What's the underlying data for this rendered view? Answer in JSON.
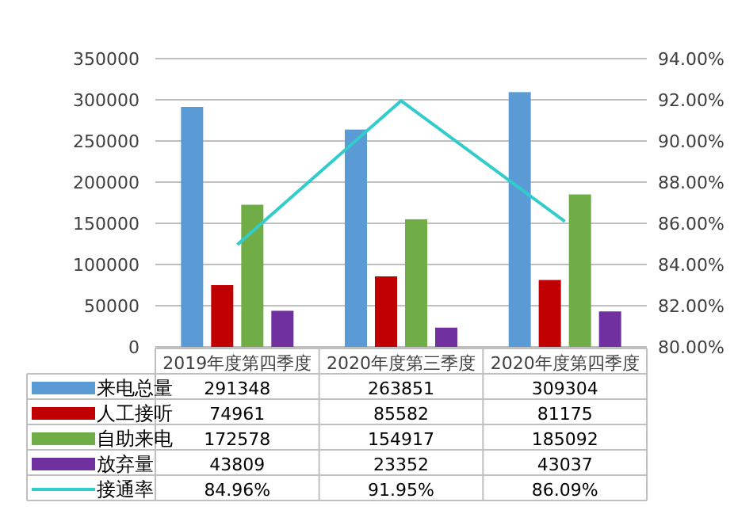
{
  "chart_data": {
    "type": "bar",
    "categories": [
      "2019年度第四季度",
      "2020年度第三季度",
      "2020年度第四季度"
    ],
    "series": [
      {
        "name": "来电总量",
        "color": "#5b9bd5",
        "values": [
          291348,
          263851,
          309304
        ],
        "value_labels": [
          "291348",
          "263851",
          "309304"
        ]
      },
      {
        "name": "人工接听",
        "color": "#c00000",
        "values": [
          74961,
          85582,
          81175
        ],
        "value_labels": [
          "74961",
          "85582",
          "81175"
        ]
      },
      {
        "name": "自助来电",
        "color": "#70ad47",
        "values": [
          172578,
          154917,
          185092
        ],
        "value_labels": [
          "172578",
          "154917",
          "185092"
        ]
      },
      {
        "name": "放弃量",
        "color": "#7030a0",
        "values": [
          43809,
          23352,
          43037
        ],
        "value_labels": [
          "43809",
          "23352",
          "43037"
        ]
      },
      {
        "name": "接通率",
        "type": "line",
        "axis": "y2",
        "color": "#33cccc",
        "values": [
          84.96,
          91.95,
          86.09
        ],
        "value_labels": [
          "84.96%",
          "91.95%",
          "86.09%"
        ],
        "marker": "none"
      }
    ],
    "ylim": [
      0,
      350000
    ],
    "yticks": [
      0,
      50000,
      100000,
      150000,
      200000,
      250000,
      300000,
      350000
    ],
    "y2lim": [
      80,
      94
    ],
    "y2ticks": [
      {
        "value": 80,
        "label": "80.00%"
      },
      {
        "value": 82,
        "label": "82.00%"
      },
      {
        "value": 84,
        "label": "84.00%"
      },
      {
        "value": 86,
        "label": "86.00%"
      },
      {
        "value": 88,
        "label": "88.00%"
      },
      {
        "value": 90,
        "label": "90.00%"
      },
      {
        "value": 92,
        "label": "92.00%"
      },
      {
        "value": 94,
        "label": "94.00%"
      }
    ],
    "grid": "y",
    "legend": "bottom"
  }
}
